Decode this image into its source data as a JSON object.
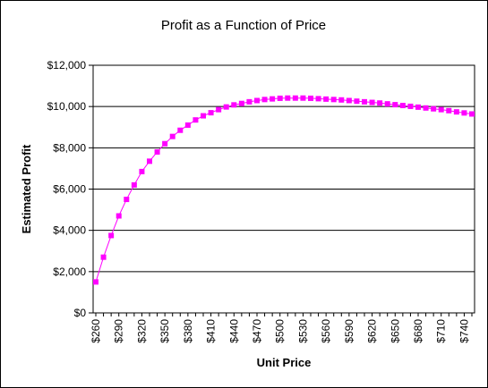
{
  "chart_data": {
    "type": "line",
    "title": "Profit as a Function of Price",
    "xlabel": "Unit Price",
    "ylabel": "Estimated Profit",
    "x": [
      260,
      270,
      280,
      290,
      300,
      310,
      320,
      330,
      340,
      350,
      360,
      370,
      380,
      390,
      400,
      410,
      420,
      430,
      440,
      450,
      460,
      470,
      480,
      490,
      500,
      510,
      520,
      530,
      540,
      550,
      560,
      570,
      580,
      590,
      600,
      610,
      620,
      630,
      640,
      650,
      660,
      670,
      680,
      690,
      700,
      710,
      720,
      730,
      740,
      750
    ],
    "x_tick_labels": [
      "$260",
      "$290",
      "$320",
      "$350",
      "$380",
      "$410",
      "$440",
      "$470",
      "$500",
      "$530",
      "$560",
      "$590",
      "$620",
      "$650",
      "$680",
      "$710",
      "$740"
    ],
    "x_tick_values": [
      260,
      290,
      320,
      350,
      380,
      410,
      440,
      470,
      500,
      530,
      560,
      590,
      620,
      650,
      680,
      710,
      740
    ],
    "series": [
      {
        "values": [
          1500,
          2700,
          3750,
          4700,
          5500,
          6200,
          6850,
          7350,
          7800,
          8200,
          8550,
          8850,
          9100,
          9350,
          9550,
          9700,
          9850,
          9980,
          10080,
          10150,
          10230,
          10290,
          10340,
          10370,
          10400,
          10410,
          10410,
          10410,
          10400,
          10380,
          10360,
          10340,
          10320,
          10290,
          10260,
          10230,
          10200,
          10170,
          10130,
          10090,
          10050,
          10010,
          9970,
          9930,
          9890,
          9850,
          9800,
          9740,
          9690,
          9640
        ],
        "color": "#FF00FF"
      }
    ],
    "y_tick_labels": [
      "$0",
      "$2,000",
      "$4,000",
      "$6,000",
      "$8,000",
      "$10,000",
      "$12,000"
    ],
    "y_tick_values": [
      0,
      2000,
      4000,
      6000,
      8000,
      10000,
      12000
    ],
    "ylim": [
      0,
      12000
    ],
    "grid": "horizontal",
    "legend": "none",
    "plot_background": "#FFFFFF",
    "gridline_color": "#000000"
  }
}
